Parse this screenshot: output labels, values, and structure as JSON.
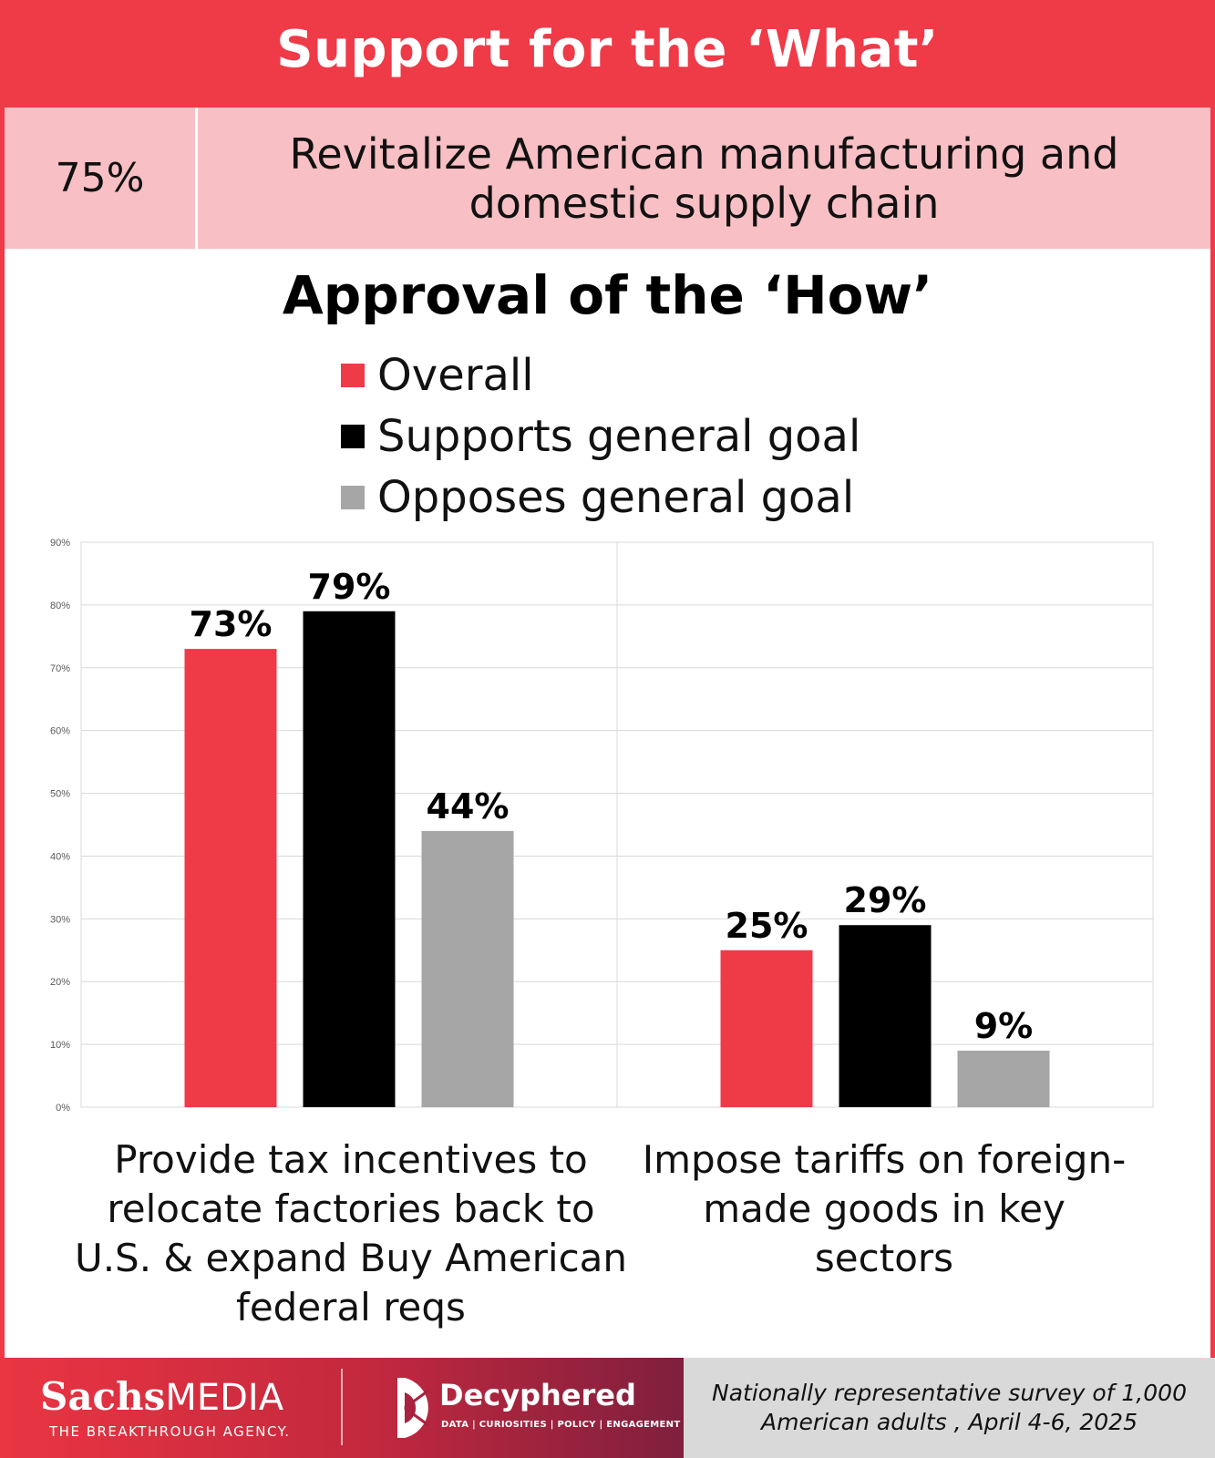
{
  "header": {
    "title": "Support for the ‘What’"
  },
  "what": {
    "percent": "75%",
    "label": "Revitalize American manufacturing and domestic supply chain"
  },
  "legend": [
    {
      "label": "Overall",
      "color": "#ef3a48"
    },
    {
      "label": "Supports general goal",
      "color": "#000000"
    },
    {
      "label": "Opposes general goal",
      "color": "#a6a6a6"
    }
  ],
  "chart_data": {
    "type": "bar",
    "title": "Approval of the ‘How’",
    "categories": [
      "Provide tax incentives to relocate factories back to U.S. & expand Buy American federal reqs",
      "Impose tariffs on foreign-made goods in key sectors"
    ],
    "series": [
      {
        "name": "Overall",
        "values": [
          73,
          25
        ],
        "labels": [
          "73%",
          "25%"
        ]
      },
      {
        "name": "Supports general goal",
        "values": [
          79,
          29
        ],
        "labels": [
          "79%",
          "29%"
        ]
      },
      {
        "name": "Opposes general goal",
        "values": [
          44,
          9
        ],
        "labels": [
          "44%",
          "9%"
        ]
      }
    ],
    "y_ticks": [
      "0%",
      "10%",
      "20%",
      "30%",
      "40%",
      "50%",
      "60%",
      "70%",
      "80%",
      "90%"
    ],
    "ylim": [
      0,
      90
    ],
    "grid": true,
    "xlabel": "",
    "ylabel": ""
  },
  "footer": {
    "brand_sachs": "Sachs",
    "brand_media": "MEDIA",
    "brand_tagline": "THE BREAKTHROUGH AGENCY.",
    "partner_name": "Decyphered",
    "partner_tagline": "DATA | CURIOSITIES | POLICY | ENGAGEMENT",
    "survey_note": "Nationally representative survey of 1,000 American adults , April 4-6, 2025"
  }
}
